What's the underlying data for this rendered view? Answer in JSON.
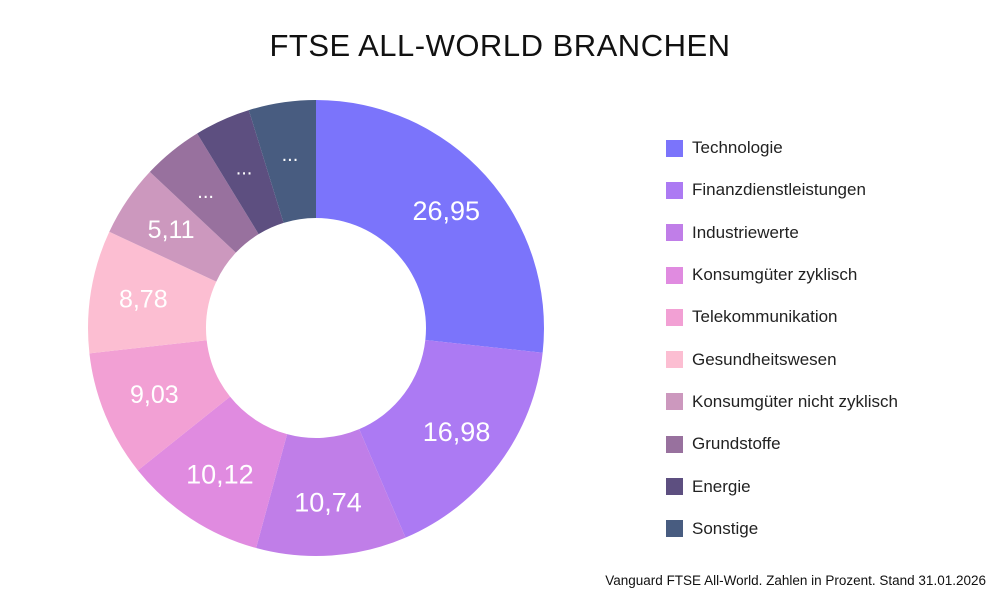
{
  "chart_data": {
    "type": "pie",
    "title": "FTSE ALL-WORLD BRANCHEN",
    "footnote": "Vanguard FTSE All-World. Zahlen in Prozent. Stand 31.01.2026",
    "legend_position": "right",
    "donut": true,
    "slices": [
      {
        "label": "Technologie",
        "value": 26.95,
        "value_label": "26,95",
        "color": "#7b74fb"
      },
      {
        "label": "Finanzdienstleistungen",
        "value": 16.98,
        "value_label": "16,98",
        "color": "#ac7af3"
      },
      {
        "label": "Industriewerte",
        "value": 10.74,
        "value_label": "10,74",
        "color": "#c07ee8"
      },
      {
        "label": "Konsumgüter zyklisch",
        "value": 10.12,
        "value_label": "10,12",
        "color": "#e08be0"
      },
      {
        "label": "Telekommunikation",
        "value": 9.03,
        "value_label": "9,03",
        "color": "#f2a0d4"
      },
      {
        "label": "Gesundheitswesen",
        "value": 8.78,
        "value_label": "8,78",
        "color": "#fcbed2"
      },
      {
        "label": "Konsumgüter nicht zyklisch",
        "value": 5.11,
        "value_label": "5,11",
        "color": "#cc98be"
      },
      {
        "label": "Grundstoffe",
        "value": 4.3,
        "value_label": "...",
        "color": "#98719e"
      },
      {
        "label": "Energie",
        "value": 4.0,
        "value_label": "...",
        "color": "#5d4f80"
      },
      {
        "label": "Sonstige",
        "value": 4.8,
        "value_label": "...",
        "color": "#485c80"
      }
    ]
  }
}
